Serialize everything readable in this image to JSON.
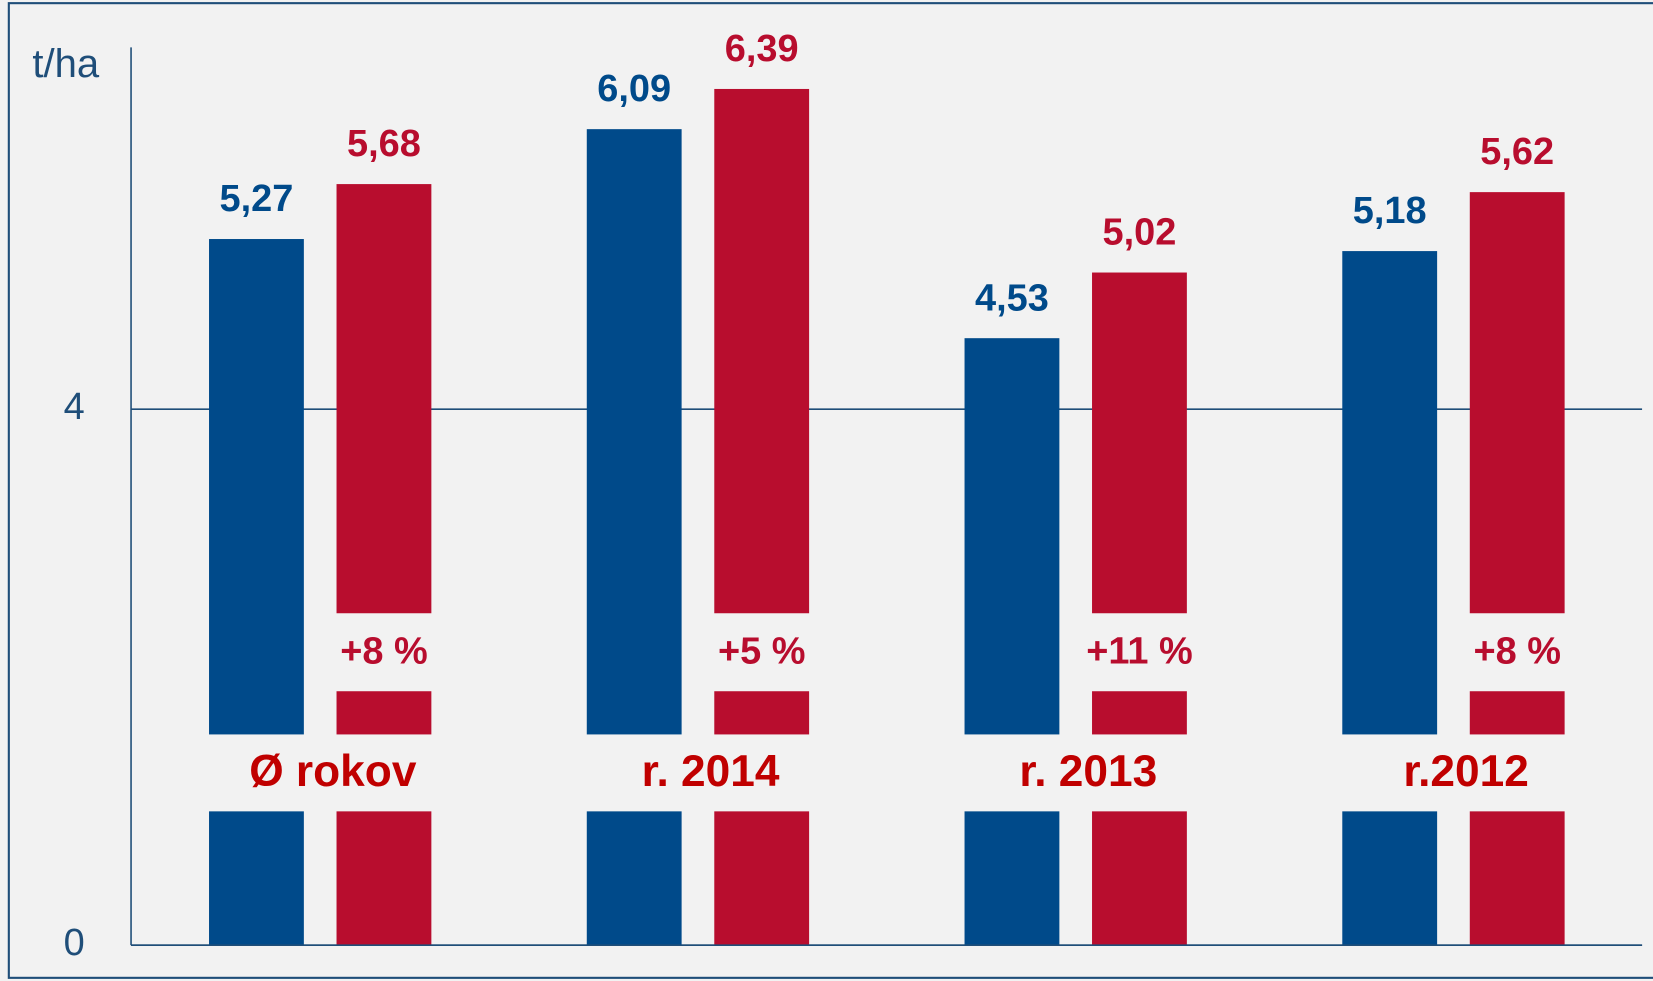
{
  "chart_data": {
    "type": "bar",
    "y_axis_label": "t/ha",
    "categories": [
      "Ø rokov",
      "r. 2014",
      "r. 2013",
      "r.2012"
    ],
    "series": [
      {
        "color": "#004a8a",
        "values": [
          5.27,
          6.09,
          4.53,
          5.18
        ],
        "value_labels": [
          "5,27",
          "6,09",
          "4,53",
          "5,18"
        ]
      },
      {
        "color": "#b80d2e",
        "values": [
          5.68,
          6.39,
          5.02,
          5.62
        ],
        "value_labels": [
          "5,68",
          "6,39",
          "5,02",
          "5,62"
        ]
      }
    ],
    "annotations": [
      "+8 %",
      "+5 %",
      "+11 %",
      "+8 %"
    ],
    "ylim": [
      0,
      6.7
    ],
    "yticks": [
      0,
      4
    ],
    "grid": true
  }
}
